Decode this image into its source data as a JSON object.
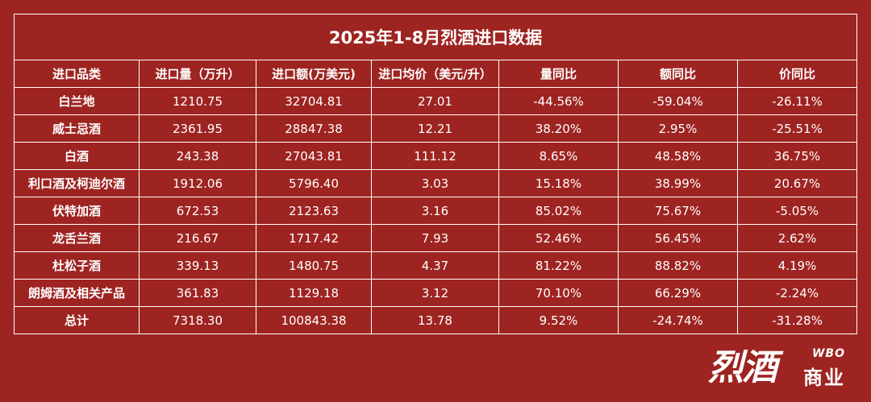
{
  "title": "2025年1-8月烈酒进口数据",
  "headers": [
    "进口品类",
    "进口量（万升）",
    "进口额(万美元)",
    "进口均价（美元/升）",
    "量同比",
    "额同比",
    "价同比"
  ],
  "rows": [
    [
      "白兰地",
      "1210.75",
      "32704.81",
      "27.01",
      "-44.56%",
      "-59.04%",
      "-26.11%"
    ],
    [
      "威士忌酒",
      "2361.95",
      "28847.38",
      "12.21",
      "38.20%",
      "2.95%",
      "-25.51%"
    ],
    [
      "白酒",
      "243.38",
      "27043.81",
      "111.12",
      "8.65%",
      "48.58%",
      "36.75%"
    ],
    [
      "利口酒及柯迪尔酒",
      "1912.06",
      "5796.40",
      "3.03",
      "15.18%",
      "38.99%",
      "20.67%"
    ],
    [
      "伏特加酒",
      "672.53",
      "2123.63",
      "3.16",
      "85.02%",
      "75.67%",
      "-5.05%"
    ],
    [
      "龙舌兰酒",
      "216.67",
      "1717.42",
      "7.93",
      "52.46%",
      "56.45%",
      "2.62%"
    ],
    [
      "杜松子酒",
      "339.13",
      "1480.75",
      "4.37",
      "81.22%",
      "88.82%",
      "4.19%"
    ],
    [
      "朗姆酒及相关产品",
      "361.83",
      "1129.18",
      "3.12",
      "70.10%",
      "66.29%",
      "-2.24%"
    ],
    [
      "总计",
      "7318.30",
      "100843.38",
      "13.78",
      "9.52%",
      "-24.74%",
      "-31.28%"
    ]
  ],
  "brand": {
    "name": "烈酒",
    "latin": "WBO",
    "sub": "商业"
  },
  "colors": {
    "background": "#9e2421",
    "text": "#ffffff",
    "border": "#ffffff"
  }
}
